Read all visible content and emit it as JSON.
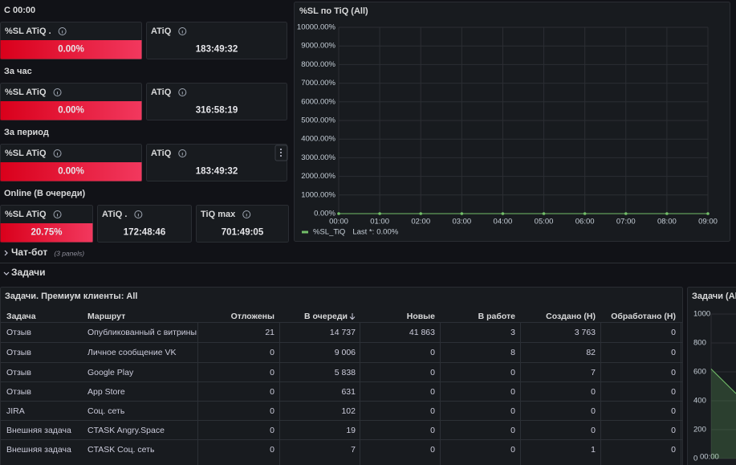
{
  "groups": [
    {
      "title": "С 00:00",
      "panels": [
        {
          "title": "%SL ATiQ .",
          "value": "0.00%"
        },
        {
          "title": "ATiQ",
          "value": "183:49:32"
        }
      ]
    },
    {
      "title": "За час",
      "panels": [
        {
          "title": "%SL ATiQ",
          "value": "0.00%"
        },
        {
          "title": "ATiQ",
          "value": "316:58:19"
        }
      ]
    },
    {
      "title": "За период",
      "panels": [
        {
          "title": "%SL ATiQ",
          "value": "0.00%"
        },
        {
          "title": "ATiQ",
          "value": "183:49:32"
        }
      ]
    },
    {
      "title": "Online (В очереди)",
      "panels": [
        {
          "title": "%SL ATiQ",
          "value": "20.75%"
        },
        {
          "title": "ATiQ .",
          "value": "172:48:46"
        },
        {
          "title": "TiQ max",
          "value": "701:49:05"
        }
      ]
    }
  ],
  "sl_chart": {
    "type": "line",
    "title": "%SL по TiQ (All)",
    "categories": [
      "00:00",
      "01:00",
      "02:00",
      "03:00",
      "04:00",
      "05:00",
      "06:00",
      "07:00",
      "08:00",
      "09:00"
    ],
    "series": [
      {
        "name": "%SL_TiQ",
        "color": "#73bf69",
        "values": [
          0,
          0,
          0,
          0,
          0,
          0,
          0,
          0,
          0,
          0
        ]
      }
    ],
    "legend_stat": "Last *:",
    "legend_value": "0.00%",
    "ylim": [
      0,
      10000
    ],
    "yticks": [
      {
        "value": 0,
        "label": "0.00%"
      },
      {
        "value": 1000,
        "label": "1000.00%"
      },
      {
        "value": 2000,
        "label": "2000.00%"
      },
      {
        "value": 3000,
        "label": "3000.00%"
      },
      {
        "value": 4000,
        "label": "4000.00%"
      },
      {
        "value": 5000,
        "label": "5000.00%"
      },
      {
        "value": 6000,
        "label": "6000.00%"
      },
      {
        "value": 7000,
        "label": "7000.00%"
      },
      {
        "value": 8000,
        "label": "8000.00%"
      },
      {
        "value": 9000,
        "label": "9000.00%"
      },
      {
        "value": 10000,
        "label": "10000.00%"
      }
    ],
    "grid": true
  },
  "rows": [
    {
      "title": "Чат-бот",
      "note": "(3 panels)"
    },
    {
      "title": "Задачи"
    }
  ],
  "table": {
    "title": "Задачи. Премиум клиенты: All",
    "columns": [
      "Задача",
      "Маршрут",
      "Отложены",
      "В очереди",
      "Новые",
      "В работе",
      "Создано (Н)",
      "Обработано (Н)"
    ],
    "rows": [
      [
        "Отзыв",
        "Опубликованный с витрины",
        "21",
        "14 737",
        "41 863",
        "3",
        "3 763",
        "0"
      ],
      [
        "Отзыв",
        "Личное сообщение VK",
        "0",
        "9 006",
        "0",
        "8",
        "82",
        "0"
      ],
      [
        "Отзыв",
        "Google Play",
        "0",
        "5 838",
        "0",
        "0",
        "7",
        "0"
      ],
      [
        "Отзыв",
        "App Store",
        "0",
        "631",
        "0",
        "0",
        "0",
        "0"
      ],
      [
        "JIRA",
        "Соц. сеть",
        "0",
        "102",
        "0",
        "0",
        "0",
        "0"
      ],
      [
        "Внешняя задача",
        "CTASK Angry.Space",
        "0",
        "19",
        "0",
        "0",
        "0",
        "0"
      ],
      [
        "Внешняя задача",
        "CTASK Соц. сеть",
        "0",
        "7",
        "0",
        "0",
        "1",
        "0"
      ]
    ]
  },
  "tasks_chart": {
    "type": "area",
    "title": "Задачи (All)",
    "categories": [
      "00:00",
      null
    ],
    "series": [
      {
        "color": "#73bf69",
        "values": [
          620,
          450
        ]
      }
    ],
    "ylim": [
      0,
      1000
    ],
    "yticks": [
      0,
      200,
      400,
      600,
      800,
      1000
    ]
  }
}
